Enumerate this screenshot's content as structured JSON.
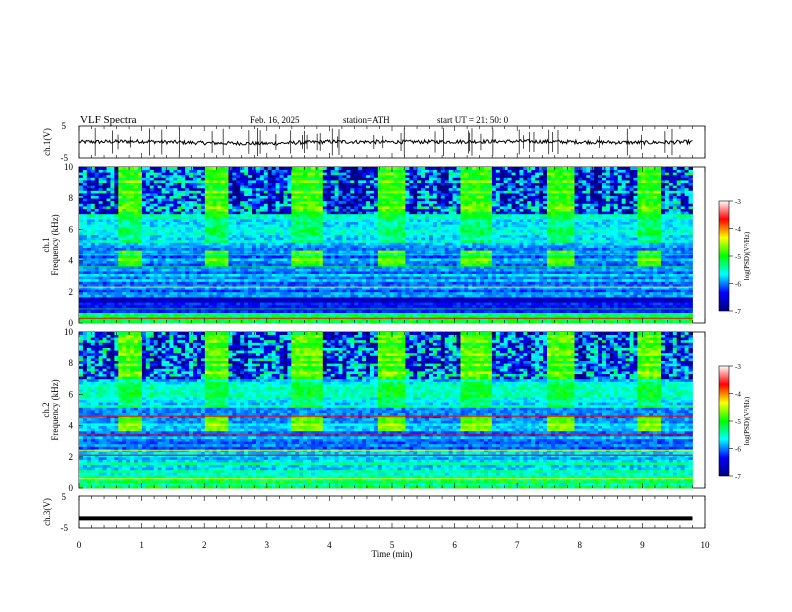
{
  "header": {
    "title": "VLF  Spectra",
    "date": "Feb. 16, 2025",
    "station": "station=ATH",
    "start_ut": "start  UT  =   21: 50: 0"
  },
  "chart_data": [
    {
      "type": "line",
      "panel": "ch1-waveform",
      "ylabel": "ch.1(V)",
      "ylim": [
        -5,
        5
      ],
      "yticks": [
        "5",
        "-5"
      ],
      "x": [
        0,
        1,
        2,
        3,
        4,
        5,
        6,
        7,
        8,
        9,
        9.8
      ],
      "values": [
        0,
        0.2,
        -0.3,
        -0.5,
        0.1,
        0,
        0.1,
        0.2,
        0,
        -0.2,
        0
      ],
      "color": "#000000"
    },
    {
      "type": "heatmap",
      "panel": "ch1-spectrogram",
      "ylabel_top": "ch.1",
      "ylabel": "Frequency  (kHz)",
      "ylim": [
        0,
        10
      ],
      "yticks": [
        "0",
        "2",
        "4",
        "6",
        "8",
        "10"
      ],
      "xlim": [
        0,
        10
      ],
      "colorbar": {
        "label": "log(PSD)(V²/Hz)",
        "range": [
          -7,
          -3
        ],
        "ticks": [
          "-3",
          "-4",
          "-5",
          "-6",
          "-7"
        ],
        "colors": [
          "#000080",
          "#0000ff",
          "#00ffff",
          "#00ff00",
          "#ffff00",
          "#ff0000",
          "#ffffff"
        ]
      },
      "bursts_min": [
        [
          0.6,
          1.0
        ],
        [
          2.0,
          2.4
        ],
        [
          3.4,
          3.9
        ],
        [
          4.8,
          5.2
        ],
        [
          6.1,
          6.6
        ],
        [
          7.5,
          7.9
        ],
        [
          8.9,
          9.3
        ]
      ]
    },
    {
      "type": "heatmap",
      "panel": "ch2-spectrogram",
      "ylabel_top": "ch.2",
      "ylabel": "Frequency  (kHz)",
      "ylim": [
        0,
        10
      ],
      "yticks": [
        "0",
        "2",
        "4",
        "6",
        "8",
        "10"
      ],
      "xlim": [
        0,
        10
      ],
      "colorbar": {
        "label": "log(PSD)(V²/Hz)",
        "range": [
          -7,
          -3
        ],
        "ticks": [
          "-3",
          "-4",
          "-5",
          "-6",
          "-7"
        ],
        "colors": [
          "#000080",
          "#0000ff",
          "#00ffff",
          "#00ff00",
          "#ffff00",
          "#ff0000",
          "#ffffff"
        ]
      },
      "bursts_min": [
        [
          0.6,
          1.0
        ],
        [
          2.0,
          2.4
        ],
        [
          3.4,
          3.9
        ],
        [
          4.8,
          5.2
        ],
        [
          6.1,
          6.6
        ],
        [
          7.5,
          7.9
        ],
        [
          8.9,
          9.3
        ]
      ]
    },
    {
      "type": "line",
      "panel": "ch3-waveform",
      "ylabel": "ch.3(V)",
      "ylim": [
        -5,
        5
      ],
      "yticks": [
        "5",
        "-5"
      ],
      "x": [
        0,
        9.8
      ],
      "values": [
        -2,
        -2
      ],
      "color": "#000000"
    }
  ],
  "xaxis": {
    "label": "Time  (min)",
    "ticks": [
      "0",
      "1",
      "2",
      "3",
      "4",
      "5",
      "6",
      "7",
      "8",
      "9",
      "10"
    ],
    "range": [
      0,
      10
    ]
  }
}
